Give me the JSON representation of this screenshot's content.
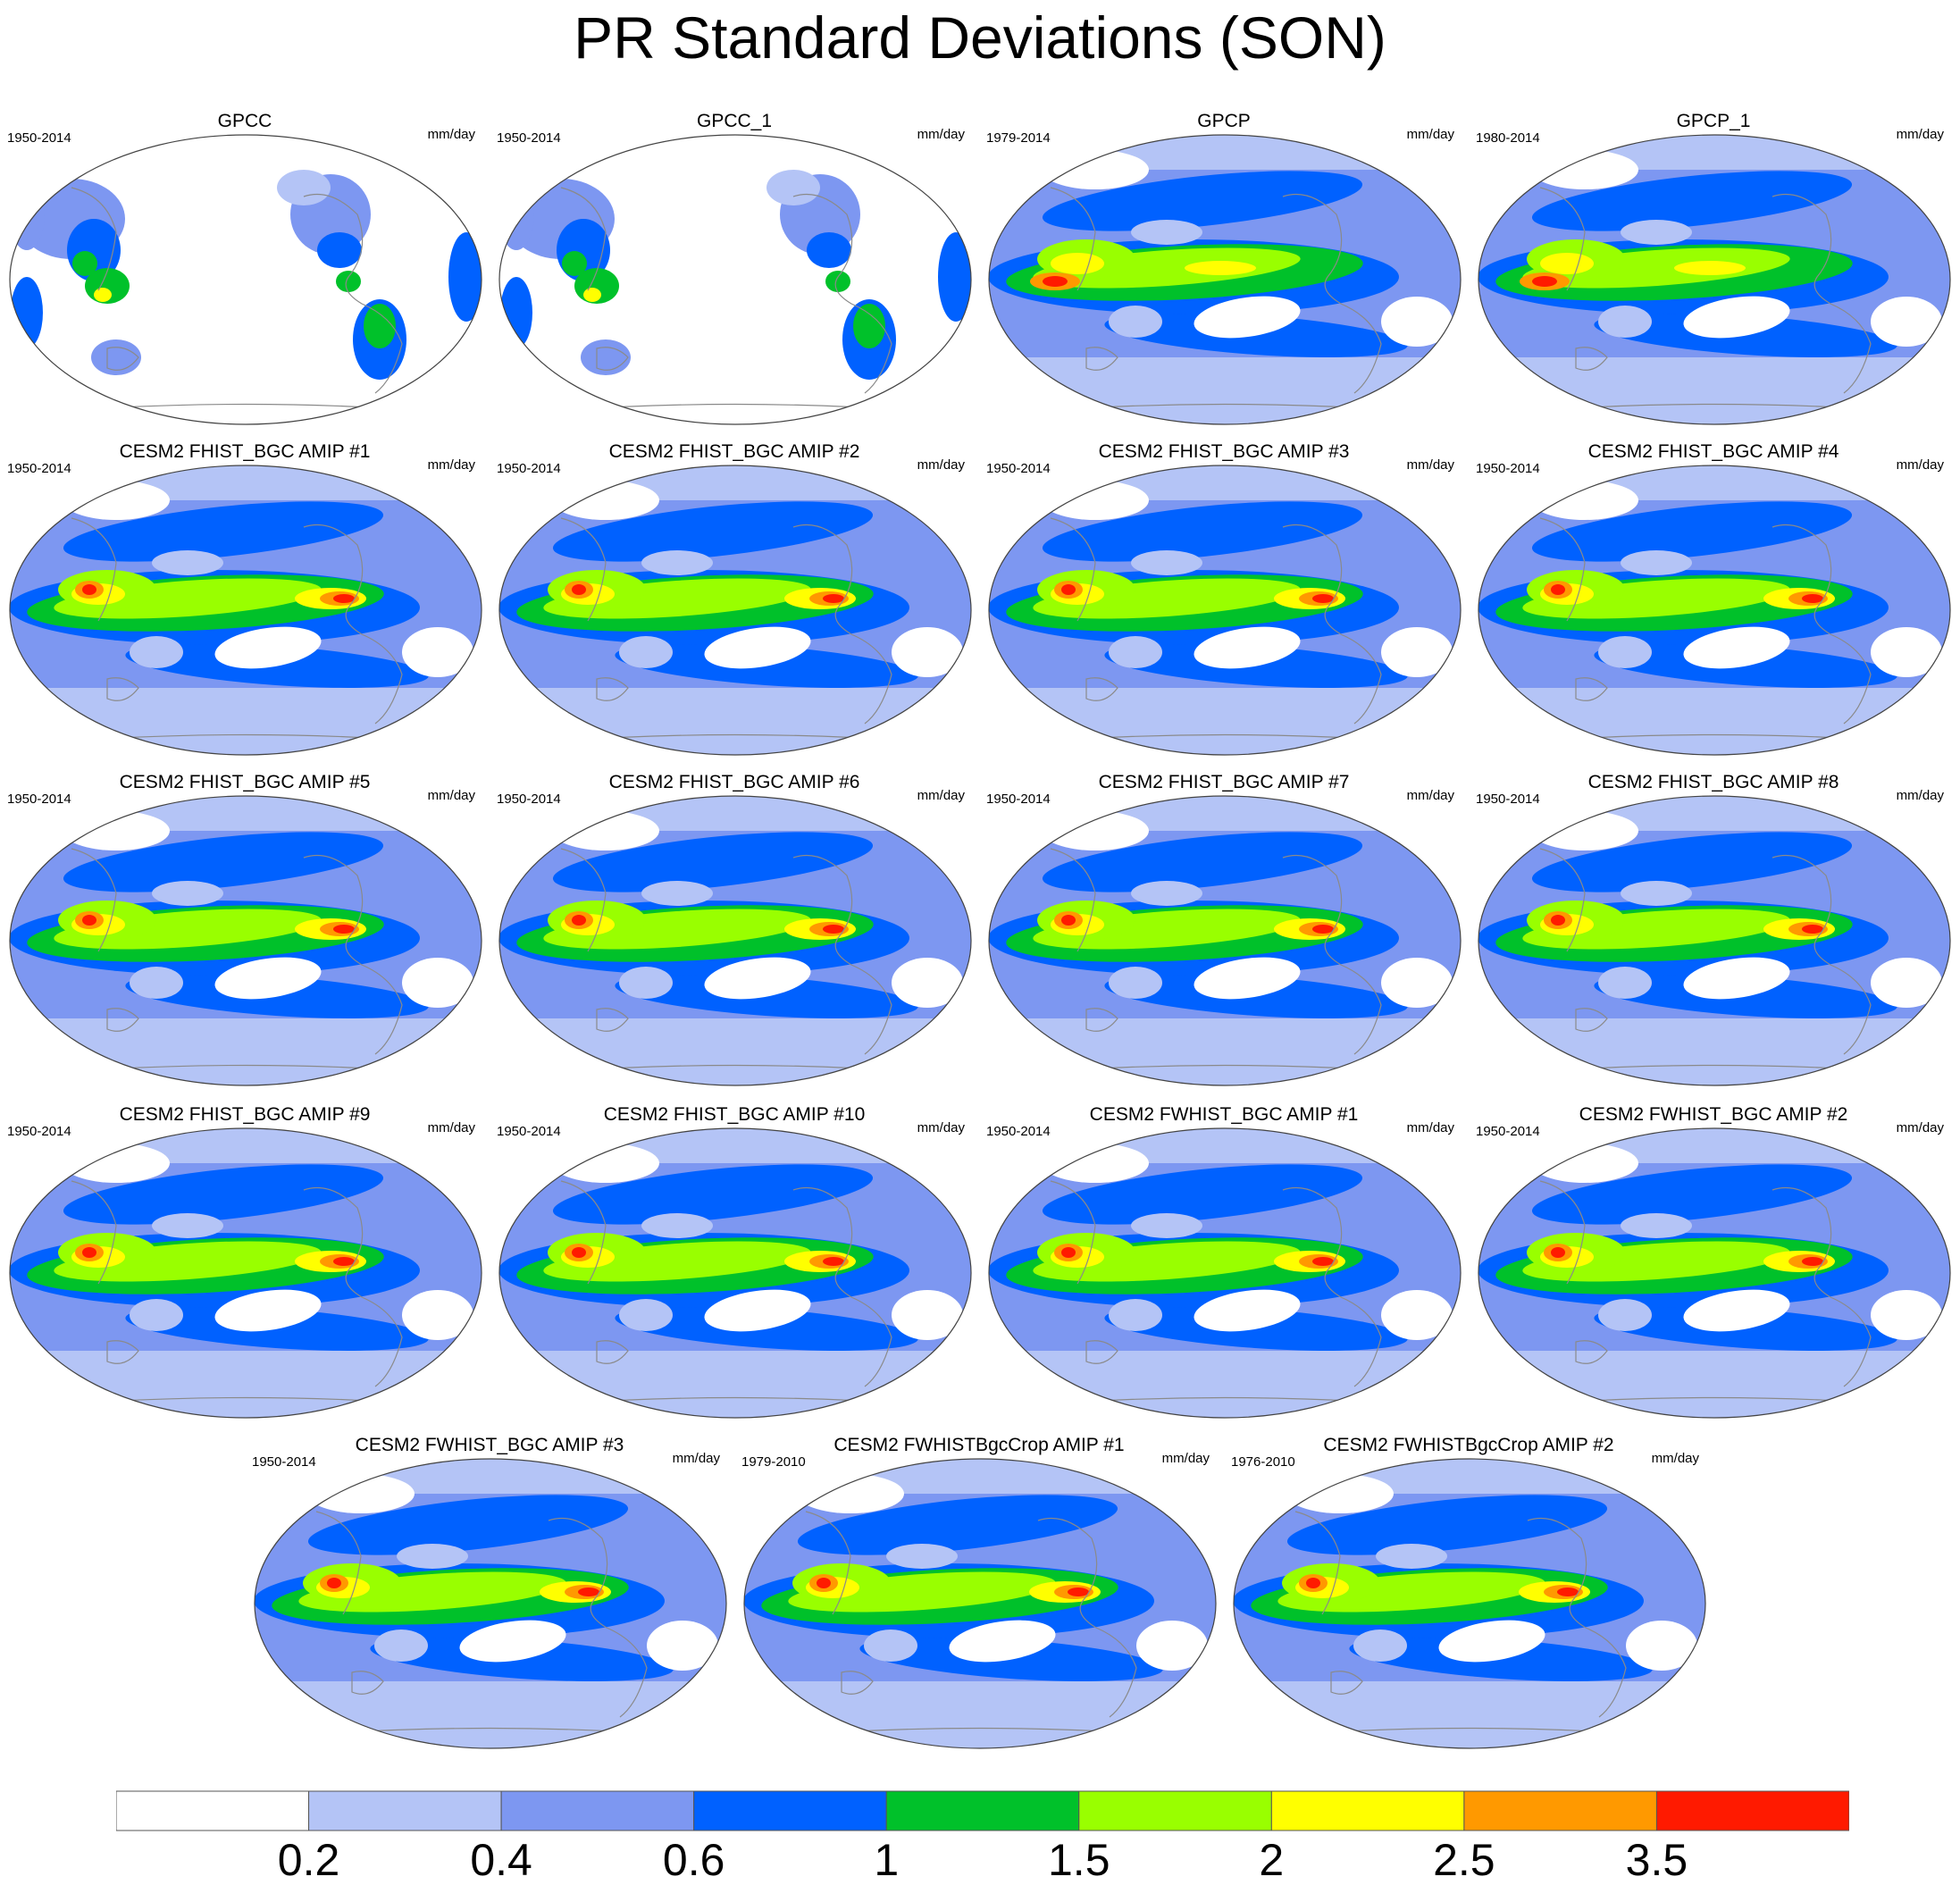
{
  "title": "PR Standard Deviations (SON)",
  "units": "mm/day",
  "panels": [
    {
      "title": "GPCC",
      "period": "1950-2014",
      "units": "mm/day",
      "kind": "land"
    },
    {
      "title": "GPCC_1",
      "period": "1950-2014",
      "units": "mm/day",
      "kind": "land"
    },
    {
      "title": "GPCP",
      "period": "1979-2014",
      "units": "mm/day",
      "kind": "obs"
    },
    {
      "title": "GPCP_1",
      "period": "1980-2014",
      "units": "mm/day",
      "kind": "obs"
    },
    {
      "title": "CESM2 FHIST_BGC AMIP #1",
      "period": "1950-2014",
      "units": "mm/day",
      "kind": "model"
    },
    {
      "title": "CESM2 FHIST_BGC AMIP #2",
      "period": "1950-2014",
      "units": "mm/day",
      "kind": "model"
    },
    {
      "title": "CESM2 FHIST_BGC AMIP #3",
      "period": "1950-2014",
      "units": "mm/day",
      "kind": "model"
    },
    {
      "title": "CESM2 FHIST_BGC AMIP #4",
      "period": "1950-2014",
      "units": "mm/day",
      "kind": "model"
    },
    {
      "title": "CESM2 FHIST_BGC AMIP #5",
      "period": "1950-2014",
      "units": "mm/day",
      "kind": "model"
    },
    {
      "title": "CESM2 FHIST_BGC AMIP #6",
      "period": "1950-2014",
      "units": "mm/day",
      "kind": "model"
    },
    {
      "title": "CESM2 FHIST_BGC AMIP #7",
      "period": "1950-2014",
      "units": "mm/day",
      "kind": "model"
    },
    {
      "title": "CESM2 FHIST_BGC AMIP #8",
      "period": "1950-2014",
      "units": "mm/day",
      "kind": "model"
    },
    {
      "title": "CESM2 FHIST_BGC AMIP #9",
      "period": "1950-2014",
      "units": "mm/day",
      "kind": "model"
    },
    {
      "title": "CESM2 FHIST_BGC AMIP #10",
      "period": "1950-2014",
      "units": "mm/day",
      "kind": "model"
    },
    {
      "title": "CESM2 FWHIST_BGC AMIP #1",
      "period": "1950-2014",
      "units": "mm/day",
      "kind": "model"
    },
    {
      "title": "CESM2 FWHIST_BGC AMIP #2",
      "period": "1950-2014",
      "units": "mm/day",
      "kind": "model"
    },
    {
      "title": "CESM2 FWHIST_BGC AMIP #3",
      "period": "1950-2014",
      "units": "mm/day",
      "kind": "model"
    },
    {
      "title": "CESM2 FWHISTBgcCrop AMIP #1",
      "period": "1979-2010",
      "units": "mm/day",
      "kind": "model"
    },
    {
      "title": "CESM2 FWHISTBgcCrop AMIP #2",
      "period": "1976-2010",
      "units": "mm/day",
      "kind": "model"
    }
  ],
  "colorbar": {
    "levels": [
      "0.2",
      "0.4",
      "0.6",
      "1",
      "1.5",
      "2",
      "2.5",
      "3.5"
    ],
    "colors": [
      "#ffffff",
      "#b4c4f6",
      "#7d97f1",
      "#0061ff",
      "#00c12a",
      "#99ff00",
      "#ffff00",
      "#ff9900",
      "#ff1a00"
    ]
  }
}
